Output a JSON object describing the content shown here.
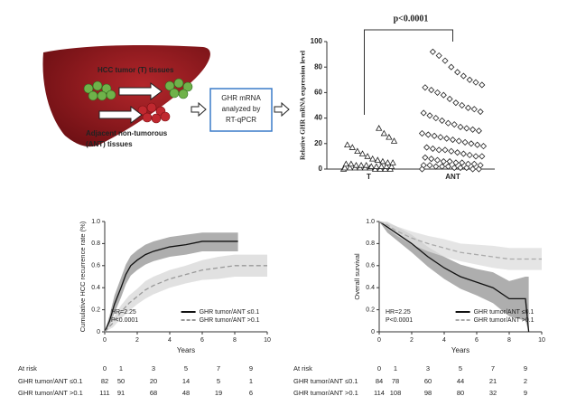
{
  "diagram": {
    "tumor_label": "HCC tumor (T) tissues",
    "adjacent_label": [
      "Adjacent non-tumorous",
      "(ANT) tissues"
    ],
    "box_label": [
      "GHR mRNA",
      "analyzed by",
      "RT-qPCR"
    ]
  },
  "chart_data": [
    {
      "type": "strip",
      "ylabel": "Relative GHR mRNA expression level",
      "annotation": "p<0.0001",
      "categories": [
        "T",
        "ANT"
      ],
      "ylim": [
        0,
        100
      ],
      "yticks": [
        0,
        20,
        40,
        60,
        80,
        100
      ],
      "series": [
        {
          "marker": "triangle",
          "color": "#222",
          "values": [
            0,
            0,
            0,
            0,
            0,
            1,
            1,
            1,
            1,
            1,
            1,
            2,
            2,
            2,
            2,
            2,
            3,
            3,
            3,
            4,
            4,
            5,
            5,
            6,
            7,
            8,
            10,
            12,
            14,
            17,
            19,
            22,
            25,
            28,
            32
          ]
        },
        {
          "marker": "diamond",
          "color": "#222",
          "values": [
            0,
            0,
            0,
            1,
            1,
            1,
            2,
            2,
            2,
            3,
            3,
            3,
            4,
            4,
            5,
            5,
            6,
            6,
            7,
            8,
            9,
            10,
            10,
            11,
            12,
            13,
            14,
            15,
            15,
            16,
            17,
            18,
            19,
            20,
            21,
            22,
            23,
            24,
            25,
            26,
            27,
            28,
            30,
            31,
            32,
            33,
            35,
            36,
            38,
            40,
            42,
            44,
            45,
            47,
            48,
            50,
            52,
            55,
            58,
            60,
            62,
            64,
            66,
            68,
            70,
            73,
            76,
            80,
            85,
            89,
            92
          ]
        }
      ]
    },
    {
      "type": "line",
      "ylabel": "Cumulative HCC recurrence rate (%)",
      "xlabel": "Years",
      "annotations": [
        "HR=2.25",
        "P<0.0001"
      ],
      "xlim": [
        0,
        10
      ],
      "ylim": [
        0,
        1
      ],
      "xticks": [
        0,
        2,
        4,
        6,
        8,
        10
      ],
      "yticks": [
        0,
        0.2,
        0.4,
        0.6,
        0.8,
        {
          "value": 1,
          "label": "1.0"
        }
      ],
      "series": [
        {
          "name": "GHR tumor/ANT ≤0.1",
          "color": "#111",
          "dash": false,
          "band_color": "#9a9a9a",
          "x": [
            0,
            0.3,
            0.6,
            1,
            1.3,
            1.6,
            2,
            2.5,
            3,
            4,
            5,
            6,
            8.2
          ],
          "values": [
            0,
            0.1,
            0.25,
            0.4,
            0.52,
            0.6,
            0.65,
            0.7,
            0.73,
            0.77,
            0.79,
            0.82,
            0.82
          ],
          "lower": [
            0,
            0.05,
            0.17,
            0.31,
            0.43,
            0.51,
            0.56,
            0.61,
            0.64,
            0.68,
            0.7,
            0.73,
            0.73
          ],
          "upper": [
            0,
            0.15,
            0.33,
            0.49,
            0.61,
            0.69,
            0.74,
            0.79,
            0.82,
            0.86,
            0.88,
            0.9,
            0.9
          ]
        },
        {
          "name": "GHR tumor/ANT >0.1",
          "color": "#999",
          "dash": true,
          "band_color": "#d9d9d9",
          "x": [
            0,
            0.5,
            1,
            1.5,
            2,
            2.5,
            3,
            4,
            5,
            6,
            7,
            8,
            10
          ],
          "values": [
            0,
            0.08,
            0.18,
            0.26,
            0.32,
            0.38,
            0.42,
            0.48,
            0.52,
            0.56,
            0.58,
            0.6,
            0.6
          ],
          "lower": [
            0,
            0.04,
            0.12,
            0.19,
            0.25,
            0.3,
            0.34,
            0.4,
            0.44,
            0.47,
            0.48,
            0.5,
            0.5
          ],
          "upper": [
            0,
            0.12,
            0.24,
            0.33,
            0.39,
            0.46,
            0.5,
            0.56,
            0.6,
            0.65,
            0.68,
            0.7,
            0.7
          ]
        }
      ]
    },
    {
      "type": "line",
      "ylabel": "Overall survival",
      "xlabel": "Years",
      "annotations": [
        "HR=2.25",
        "P<0.0001"
      ],
      "xlim": [
        0,
        10
      ],
      "ylim": [
        0,
        1
      ],
      "xticks": [
        0,
        2,
        4,
        6,
        8,
        10
      ],
      "yticks": [
        0,
        0.2,
        0.4,
        0.6,
        0.8,
        {
          "value": 1,
          "label": "1.0"
        }
      ],
      "series": [
        {
          "name": "GHR tumor/ANT ≤0.1",
          "color": "#111",
          "dash": false,
          "band_color": "#9a9a9a",
          "x": [
            0,
            0.5,
            1,
            1.5,
            2,
            3,
            4,
            5,
            6,
            7,
            8,
            9,
            9.2
          ],
          "values": [
            1,
            0.95,
            0.9,
            0.85,
            0.8,
            0.68,
            0.58,
            0.5,
            0.45,
            0.4,
            0.3,
            0.3,
            0
          ],
          "lower": [
            1,
            0.9,
            0.84,
            0.78,
            0.72,
            0.59,
            0.48,
            0.39,
            0.33,
            0.26,
            0.14,
            0.1,
            0
          ],
          "upper": [
            1,
            0.99,
            0.96,
            0.92,
            0.88,
            0.77,
            0.68,
            0.61,
            0.57,
            0.54,
            0.46,
            0.5,
            0.5
          ]
        },
        {
          "name": "GHR tumor/ANT >0.1",
          "color": "#aaa",
          "dash": true,
          "band_color": "#dedede",
          "x": [
            0,
            0.5,
            1,
            2,
            3,
            4,
            5,
            6,
            7,
            8,
            10
          ],
          "values": [
            1,
            0.97,
            0.92,
            0.85,
            0.8,
            0.76,
            0.72,
            0.7,
            0.68,
            0.66,
            0.66
          ],
          "lower": [
            1,
            0.94,
            0.88,
            0.79,
            0.73,
            0.68,
            0.64,
            0.61,
            0.58,
            0.56,
            0.56
          ],
          "upper": [
            1,
            1,
            0.96,
            0.91,
            0.87,
            0.84,
            0.8,
            0.79,
            0.78,
            0.76,
            0.76
          ]
        }
      ]
    }
  ],
  "risk_tables": [
    {
      "title": "At risk",
      "columns": [
        "0",
        "1",
        "3",
        "5",
        "7",
        "9"
      ],
      "rows": [
        {
          "name": "GHR tumor/ANT ≤0.1",
          "values": [
            "82",
            "50",
            "20",
            "14",
            "5",
            "1"
          ]
        },
        {
          "name": "GHR tumor/ANT >0.1",
          "values": [
            "111",
            "91",
            "68",
            "48",
            "19",
            "6"
          ]
        }
      ]
    },
    {
      "title": "At risk",
      "columns": [
        "0",
        "1",
        "3",
        "5",
        "7",
        "9"
      ],
      "rows": [
        {
          "name": "GHR tumor/ANT ≤0.1",
          "values": [
            "84",
            "78",
            "60",
            "44",
            "21",
            "2"
          ]
        },
        {
          "name": "GHR tumor/ANT >0.1",
          "values": [
            "114",
            "108",
            "98",
            "80",
            "32",
            "9"
          ]
        }
      ]
    }
  ]
}
